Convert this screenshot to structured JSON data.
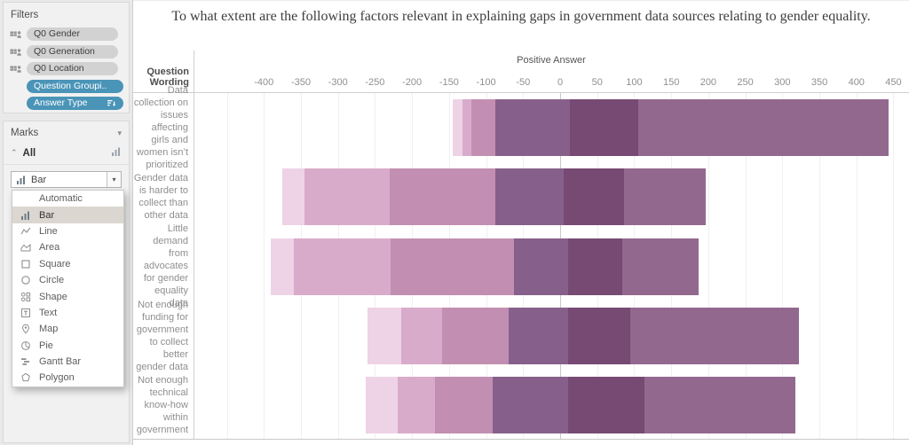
{
  "sidebar": {
    "filters": {
      "title": "Filters",
      "pill_colors": {
        "gray": "#d2d2d2",
        "blue": "#4a94b8"
      },
      "pills": [
        {
          "label": "Q0 Gender",
          "style": "gray",
          "left_icon": "related-datasource-filter-icon"
        },
        {
          "label": "Q0 Generation",
          "style": "gray",
          "left_icon": "related-datasource-filter-icon"
        },
        {
          "label": "Q0 Location",
          "style": "gray",
          "left_icon": "related-datasource-filter-icon"
        },
        {
          "label": "Question Groupi..",
          "style": "blue"
        },
        {
          "label": "Answer Type",
          "style": "blue",
          "right_icon": "sort-descending-icon"
        }
      ]
    },
    "marks": {
      "title": "Marks",
      "card_label": "All",
      "card_icon": "barchart-icon",
      "mark_type": "Bar",
      "mark_type_icon": "bar-mark-icon",
      "dropdown_items": [
        {
          "label": "Automatic",
          "icon": ""
        },
        {
          "label": "Bar",
          "icon": "bar-mark-icon",
          "selected": true
        },
        {
          "label": "Line",
          "icon": "line-mark-icon"
        },
        {
          "label": "Area",
          "icon": "area-mark-icon"
        },
        {
          "label": "Square",
          "icon": "square-mark-icon"
        },
        {
          "label": "Circle",
          "icon": "circle-mark-icon"
        },
        {
          "label": "Shape",
          "icon": "shape-mark-icon"
        },
        {
          "label": "Text",
          "icon": "text-mark-icon"
        },
        {
          "label": "Map",
          "icon": "map-mark-icon"
        },
        {
          "label": "Pie",
          "icon": "pie-mark-icon"
        },
        {
          "label": "Gantt Bar",
          "icon": "gantt-mark-icon"
        },
        {
          "label": "Polygon",
          "icon": "polygon-mark-icon"
        }
      ]
    }
  },
  "chart_data": {
    "type": "bar",
    "subtype": "diverging-stacked-likert",
    "title": "To what extent are the following factors relevant in explaining gaps in government data sources relating to gender equality.",
    "axis_label": "Positive Answer",
    "row_header": "Question Wording",
    "x_ticks": [
      -400,
      -350,
      -300,
      -250,
      -200,
      -150,
      -100,
      -50,
      0,
      50,
      100,
      150,
      200,
      250,
      300,
      350,
      400,
      450
    ],
    "xlim": [
      -495,
      471
    ],
    "grid": true,
    "gridline_color": "#f2eff2",
    "zero_line_color": "#c9c9c9",
    "segment_colors": [
      "#eed3e7",
      "#d9abcb",
      "#c28fb2",
      "#86608a",
      "#774a74",
      "#93688f"
    ],
    "rows": [
      {
        "label": "Data collection on issues affecting girls and women isn’t prioritized",
        "boundaries": [
          -145,
          -132,
          -120,
          -88,
          13,
          105,
          443
        ]
      },
      {
        "label": "Gender data is harder to collect than other data",
        "boundaries": [
          -375,
          -345,
          -230,
          -88,
          5,
          86,
          197
        ]
      },
      {
        "label": "Little demand from advocates for gender equality data",
        "boundaries": [
          -391,
          -360,
          -229,
          -62,
          11,
          84,
          187
        ]
      },
      {
        "label": "Not enough funding for government to collect better gender data",
        "boundaries": [
          -260,
          -215,
          -159,
          -70,
          11,
          95,
          322
        ]
      },
      {
        "label": "Not enough technical know-how within government",
        "boundaries": [
          -263,
          -219,
          -169,
          -91,
          11,
          114,
          317
        ]
      }
    ]
  }
}
